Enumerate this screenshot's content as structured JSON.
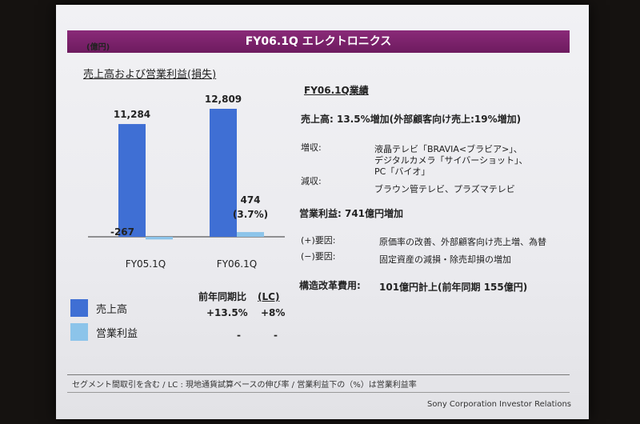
{
  "slide": {
    "title": "FY06.1Q エレクトロニクス",
    "unit": "(億円)",
    "chart_title": "売上高および営業利益(損失)",
    "footnote": "セグメント間取引を含む / LC : 現地通貨試算ベースの伸び率 / 営業利益下の（%）は営業利益率",
    "credit": "Sony Corporation Investor Relations"
  },
  "chart_data": {
    "type": "bar",
    "categories": [
      "FY05.1Q",
      "FY06.1Q"
    ],
    "series": [
      {
        "name": "売上高",
        "values": [
          11284,
          12809
        ],
        "labels": [
          "11,284",
          "12,809"
        ],
        "color": "#3f6fd4"
      },
      {
        "name": "営業利益",
        "values": [
          -267,
          474
        ],
        "labels": [
          "-267",
          "474"
        ],
        "color": "#8cc4ea"
      }
    ],
    "annotations": [
      "(3.7%)"
    ],
    "title": "売上高および営業利益(損失)",
    "ylabel": "(億円)"
  },
  "legend": {
    "sales": "売上高",
    "op": "営業利益",
    "sales_color": "#3f6fd4",
    "op_color": "#8cc4ea"
  },
  "growth": {
    "header_yoy": "前年同期比",
    "header_lc": "(LC)",
    "sales_yoy": "+13.5%",
    "sales_lc": "+8%",
    "op_yoy": "-",
    "op_lc": "-"
  },
  "results": {
    "heading": "FY06.1Q業績",
    "sales_line": "売上高:  13.5%増加(外部顧客向け売上:19%増加)",
    "inc_label": "増収:",
    "inc_items": [
      "液晶テレビ「BRAVIA<ブラビア>」、",
      "デジタルカメラ「サイバーショット」、",
      "PC「バイオ」"
    ],
    "dec_label": "減収:",
    "dec_items": "ブラウン管テレビ、プラズマテレビ",
    "op_line": "営業利益:  741億円増加",
    "plus_label": "(+)要因:",
    "plus_text": "原価率の改善、外部顧客向け売上増、為替",
    "minus_label": "(−)要因:",
    "minus_text": "固定資産の減損・除売却損の増加",
    "restructure_label": "構造改革費用:",
    "restructure_text": "101億円計上(前年同期  155億円)"
  }
}
